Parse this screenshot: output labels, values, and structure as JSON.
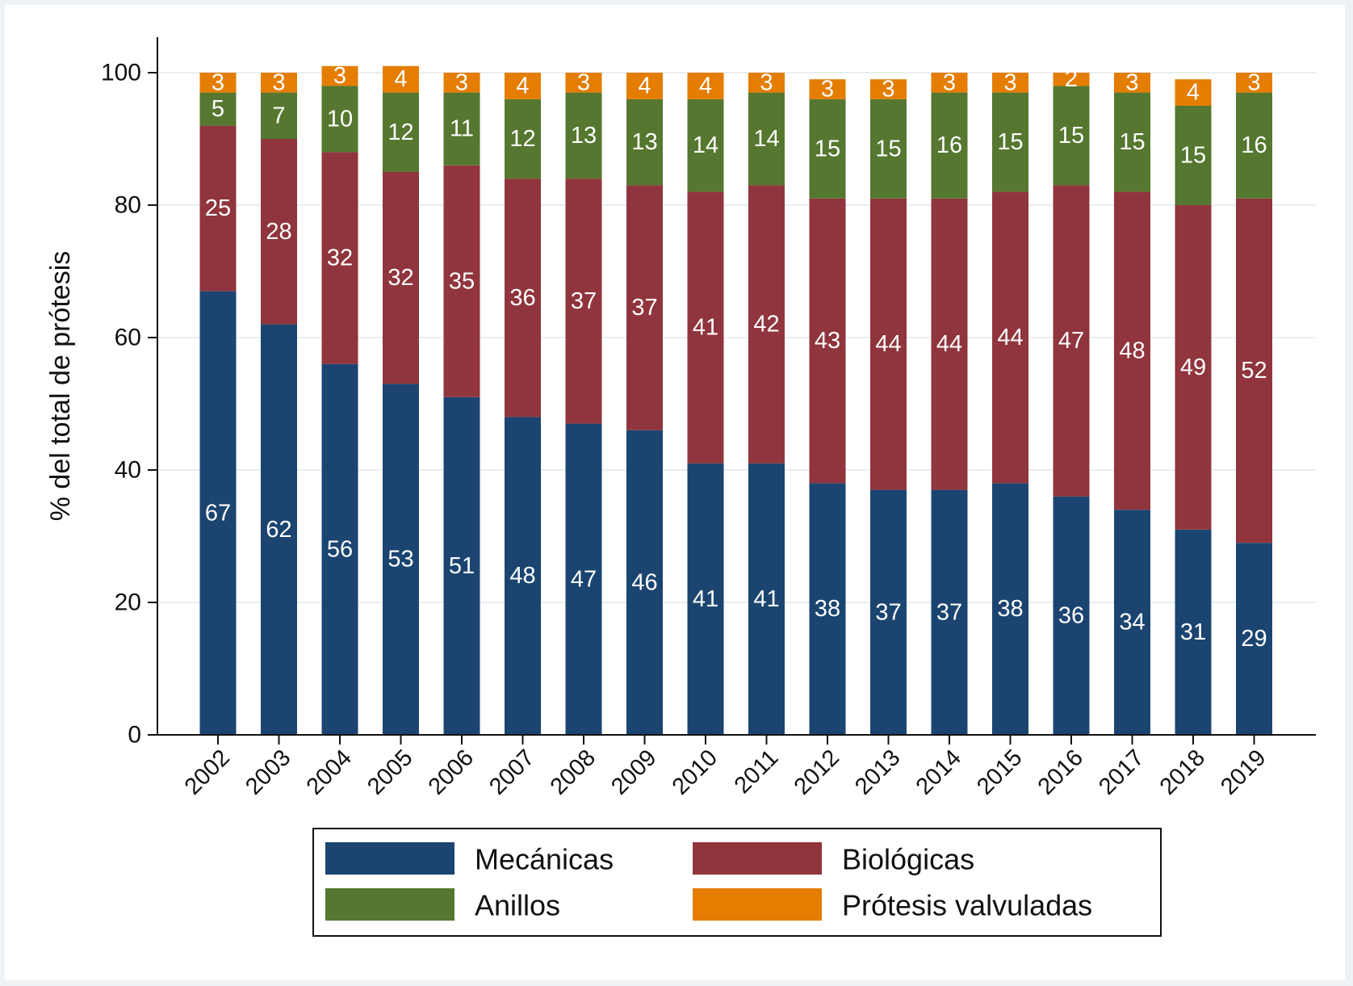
{
  "chart_data": {
    "type": "bar",
    "stacked": true,
    "title": "",
    "xlabel": "",
    "ylabel": "% del total de prótesis",
    "ylim": [
      0,
      100
    ],
    "yticks": [
      0,
      20,
      40,
      60,
      80,
      100
    ],
    "grid": true,
    "legend_position": "bottom",
    "categories": [
      "2002",
      "2003",
      "2004",
      "2005",
      "2006",
      "2007",
      "2008",
      "2009",
      "2010",
      "2011",
      "2012",
      "2013",
      "2014",
      "2015",
      "2016",
      "2017",
      "2018",
      "2019"
    ],
    "series": [
      {
        "name": "Mecánicas",
        "color": "#1b4570",
        "values": [
          67,
          62,
          56,
          53,
          51,
          48,
          47,
          46,
          41,
          41,
          38,
          37,
          37,
          38,
          36,
          34,
          31,
          29
        ]
      },
      {
        "name": "Biológicas",
        "color": "#90353d",
        "values": [
          25,
          28,
          32,
          32,
          35,
          36,
          37,
          37,
          41,
          42,
          43,
          44,
          44,
          44,
          47,
          48,
          49,
          52
        ]
      },
      {
        "name": "Anillos",
        "color": "#55772f",
        "values": [
          5,
          7,
          10,
          12,
          11,
          12,
          13,
          13,
          14,
          14,
          15,
          15,
          16,
          15,
          15,
          15,
          15,
          16
        ]
      },
      {
        "name": "Prótesis valvuladas",
        "color": "#e47d00",
        "values": [
          3,
          3,
          3,
          4,
          3,
          4,
          3,
          4,
          4,
          3,
          3,
          3,
          3,
          3,
          2,
          3,
          4,
          3
        ]
      }
    ]
  }
}
